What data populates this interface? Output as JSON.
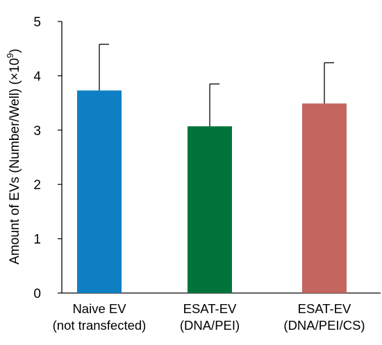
{
  "chart_data": {
    "type": "bar",
    "ylabel": "Amount of EVs (Number/Well) (×10",
    "ylabel_exponent": "9",
    "ylabel_close": ")",
    "categories": [
      [
        "Naive EV",
        "(not transfected)"
      ],
      [
        "ESAT-EV",
        "(DNA/PEI)"
      ],
      [
        "ESAT-EV",
        "(DNA/PEI/CS)"
      ]
    ],
    "values": [
      3.73,
      3.07,
      3.49
    ],
    "errors": [
      0.85,
      0.78,
      0.75
    ],
    "colors": [
      "#0f7fc4",
      "#00743a",
      "#c46560"
    ],
    "ylim": [
      0,
      5
    ],
    "yticks": [
      0,
      1,
      2,
      3,
      4,
      5
    ],
    "grid": false
  }
}
